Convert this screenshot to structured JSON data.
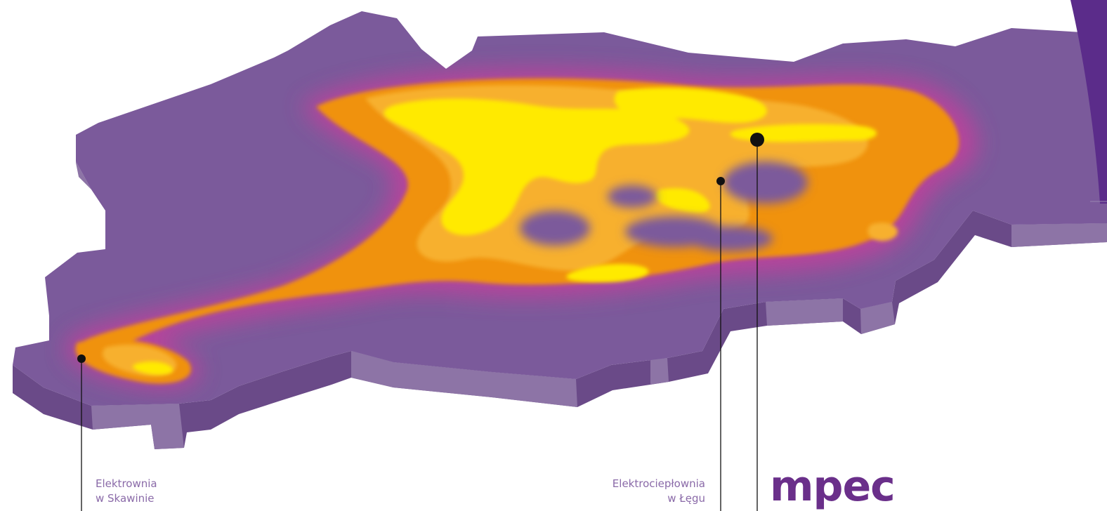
{
  "colors": {
    "plate_top": "#7b5a9b",
    "plate_side_light": "#8d74a6",
    "plate_side_dark": "#6a4a88",
    "heat_outer": "#c2409b",
    "heat_orange": "#f0920a",
    "heat_amber": "#f7b02e",
    "heat_yellow": "#ffea00",
    "point": "#111111",
    "label_text": "#8a6aa8",
    "logo_purple": "#6a2f8a",
    "accent_purple": "#5b2c8a"
  },
  "labels": {
    "skawina": {
      "line1": "Elektrownia",
      "line2": "w Skawinie"
    },
    "leg": {
      "line1": "Elektrociepłownia",
      "line2": "w Łęgu"
    }
  },
  "logo": {
    "text": "mpec"
  }
}
